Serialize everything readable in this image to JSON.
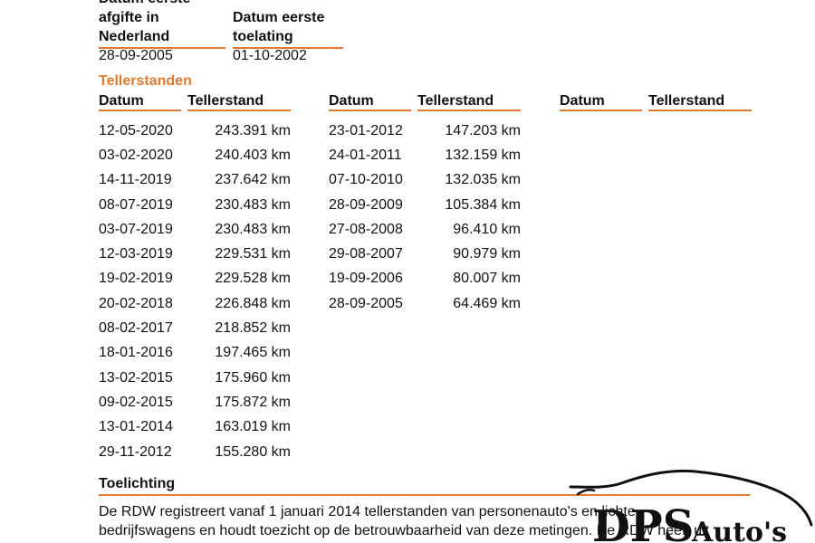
{
  "header": {
    "col1": {
      "label_lines": [
        "Datum eerste",
        "afgifte in",
        "Nederland"
      ],
      "value": "28-09-2005"
    },
    "col2": {
      "label_lines": [
        "Datum eerste",
        "toelating"
      ],
      "value": "01-10-2002"
    }
  },
  "section_title": "Tellerstanden",
  "columns": {
    "date": "Datum",
    "reading": "Tellerstand"
  },
  "tables": [
    {
      "rows": [
        {
          "date": "12-05-2020",
          "km": "243.391 km"
        },
        {
          "date": "03-02-2020",
          "km": "240.403 km"
        },
        {
          "date": "14-11-2019",
          "km": "237.642 km"
        },
        {
          "date": "08-07-2019",
          "km": "230.483 km"
        },
        {
          "date": "03-07-2019",
          "km": "230.483 km"
        },
        {
          "date": "12-03-2019",
          "km": "229.531 km"
        },
        {
          "date": "19-02-2019",
          "km": "229.528 km"
        },
        {
          "date": "20-02-2018",
          "km": "226.848 km"
        },
        {
          "date": "08-02-2017",
          "km": "218.852 km"
        },
        {
          "date": "18-01-2016",
          "km": "197.465 km"
        },
        {
          "date": "13-02-2015",
          "km": "175.960 km"
        },
        {
          "date": "09-02-2015",
          "km": "175.872 km"
        },
        {
          "date": "13-01-2014",
          "km": "163.019 km"
        },
        {
          "date": "29-11-2012",
          "km": "155.280 km"
        }
      ]
    },
    {
      "rows": [
        {
          "date": "23-01-2012",
          "km": "147.203 km"
        },
        {
          "date": "24-01-2011",
          "km": "132.159 km"
        },
        {
          "date": "07-10-2010",
          "km": "132.035 km"
        },
        {
          "date": "28-09-2009",
          "km": "105.384 km"
        },
        {
          "date": "27-08-2008",
          "km": "96.410 km"
        },
        {
          "date": "29-08-2007",
          "km": "90.979 km"
        },
        {
          "date": "19-09-2006",
          "km": "80.007 km"
        },
        {
          "date": "28-09-2005",
          "km": "64.469 km"
        }
      ]
    },
    {
      "rows": []
    }
  ],
  "explanation": {
    "title": "Toelichting",
    "line1": "De RDW registreert vanaf 1 januari 2014 tellerstanden van personenauto's en lichte",
    "line2": "bedrijfswagens en houdt toezicht op de betrouwbaarheid van deze metingen. De RDW heeft uit"
  },
  "logo": {
    "text_main": "DPS",
    "text_sub": "Auto's"
  },
  "colors": {
    "accent": "#e07a2e",
    "text": "#111111"
  }
}
